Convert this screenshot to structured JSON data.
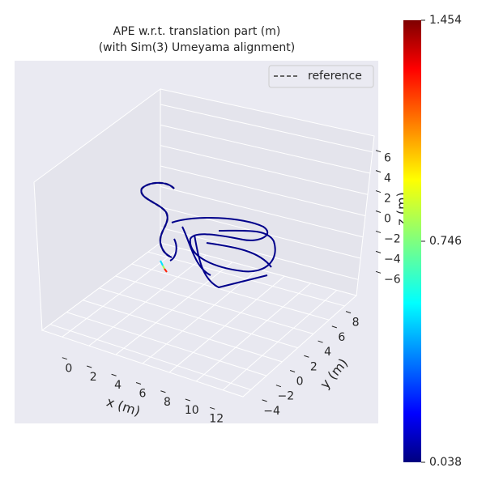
{
  "chart_data": {
    "type": "trajectory3d",
    "title": "APE w.r.t. translation part (m)",
    "subtitle": "(with Sim(3) Umeyama alignment)",
    "legend": {
      "labels": [
        "reference"
      ],
      "loc": "upper right"
    },
    "xlabel": "x (m)",
    "ylabel": "y (m)",
    "zlabel": "z (m)",
    "xlim": [
      -1.5,
      13.5
    ],
    "xticks": [
      0,
      2,
      4,
      6,
      8,
      10,
      12
    ],
    "ylim": [
      -5,
      9.5
    ],
    "yticks": [
      {
        "value": -4,
        "label": "−4"
      },
      {
        "value": -2,
        "label": "−2"
      },
      0,
      2,
      4,
      6,
      8
    ],
    "zlim": [
      -7.5,
      7.5
    ],
    "zticks": [
      {
        "value": -6,
        "label": "−6"
      },
      {
        "value": -4,
        "label": "−4"
      },
      {
        "value": -2,
        "label": "−2"
      },
      0,
      2,
      4,
      6
    ],
    "colorbar": {
      "clim": [
        0.038,
        1.454
      ],
      "ticks": [
        0.038,
        0.746,
        1.454
      ],
      "colormap": "jet"
    }
  }
}
